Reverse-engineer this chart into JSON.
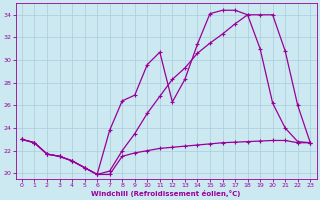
{
  "bg_color": "#cce8f0",
  "grid_color": "#aaccdd",
  "line_color": "#990099",
  "xlim": [
    -0.5,
    23.5
  ],
  "ylim": [
    19.5,
    35.0
  ],
  "yticks": [
    20,
    22,
    24,
    26,
    28,
    30,
    32,
    34
  ],
  "xticks": [
    0,
    1,
    2,
    3,
    4,
    5,
    6,
    7,
    8,
    9,
    10,
    11,
    12,
    13,
    14,
    15,
    16,
    17,
    18,
    19,
    20,
    21,
    22,
    23
  ],
  "xlabel": "Windchill (Refroidissement éolien,°C)",
  "line1_x": [
    0,
    1,
    2,
    3,
    4,
    5,
    6,
    7,
    8,
    9,
    10,
    11,
    12,
    13,
    14,
    15,
    16,
    17,
    18,
    19,
    20,
    21,
    22,
    23
  ],
  "line1_y": [
    23.0,
    22.7,
    21.7,
    21.5,
    21.1,
    20.5,
    19.9,
    19.9,
    21.5,
    21.8,
    22.0,
    22.2,
    22.3,
    22.4,
    22.5,
    22.6,
    22.7,
    22.75,
    22.8,
    22.85,
    22.9,
    22.9,
    22.7,
    22.7
  ],
  "line2_x": [
    0,
    1,
    2,
    3,
    4,
    5,
    6,
    7,
    8,
    9,
    10,
    11,
    12,
    13,
    14,
    15,
    16,
    17,
    18,
    19,
    20,
    21,
    22,
    23
  ],
  "line2_y": [
    23.0,
    22.7,
    21.7,
    21.5,
    21.1,
    20.5,
    19.9,
    23.8,
    26.4,
    26.9,
    29.6,
    30.7,
    26.3,
    28.3,
    31.4,
    34.1,
    34.4,
    34.4,
    34.0,
    31.0,
    26.2,
    24.0,
    22.8,
    22.7
  ],
  "line3_x": [
    0,
    1,
    2,
    3,
    4,
    5,
    6,
    7,
    8,
    9,
    10,
    11,
    12,
    13,
    14,
    15,
    16,
    17,
    18,
    19,
    20,
    21,
    22,
    23
  ],
  "line3_y": [
    23.0,
    22.7,
    21.7,
    21.5,
    21.1,
    20.5,
    19.9,
    20.2,
    22.0,
    23.5,
    25.3,
    26.8,
    28.3,
    29.3,
    30.6,
    31.5,
    32.3,
    33.2,
    34.0,
    34.0,
    34.0,
    30.8,
    26.0,
    22.7
  ]
}
